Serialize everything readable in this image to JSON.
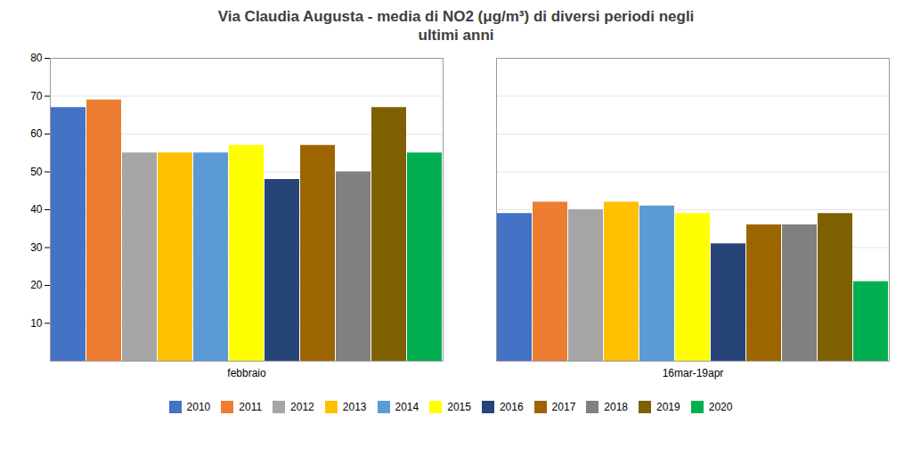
{
  "chart_data": {
    "type": "bar",
    "title": "Via Claudia Augusta - media di NO2 (μg/m³) di diversi periodi negli\nultimi anni",
    "categories": [
      "febbraio",
      "16mar-19apr"
    ],
    "series": [
      {
        "name": "2010",
        "color": "#4472C4",
        "values": [
          67,
          39
        ]
      },
      {
        "name": "2011",
        "color": "#ED7D31",
        "values": [
          69,
          42
        ]
      },
      {
        "name": "2012",
        "color": "#A5A5A5",
        "values": [
          55,
          40
        ]
      },
      {
        "name": "2013",
        "color": "#FFC000",
        "values": [
          55,
          42
        ]
      },
      {
        "name": "2014",
        "color": "#5B9BD5",
        "values": [
          55,
          41
        ]
      },
      {
        "name": "2015",
        "color": "#FFFF00",
        "values": [
          57,
          39
        ]
      },
      {
        "name": "2016",
        "color": "#264478",
        "values": [
          48,
          31
        ]
      },
      {
        "name": "2017",
        "color": "#9C6500",
        "values": [
          57,
          36
        ]
      },
      {
        "name": "2018",
        "color": "#808080",
        "values": [
          50,
          36
        ]
      },
      {
        "name": "2019",
        "color": "#7F6000",
        "values": [
          67,
          39
        ]
      },
      {
        "name": "2020",
        "color": "#00B050",
        "values": [
          55,
          21
        ]
      }
    ],
    "ylim": [
      0,
      80
    ],
    "yticks": [
      10,
      20,
      30,
      40,
      50,
      60,
      70,
      80
    ],
    "grid": true,
    "legend": "bottom"
  }
}
